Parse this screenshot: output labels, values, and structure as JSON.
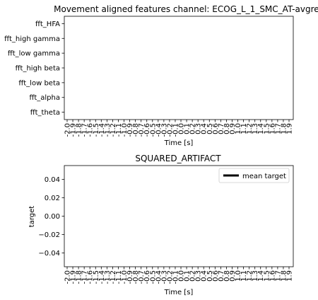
{
  "chart_data": [
    {
      "type": "heatmap",
      "title": "Movement aligned features channel: ECOG_L_1_SMC_AT-avgref",
      "xlabel": "Time [s]",
      "ylabel": "",
      "rows": [
        "fft_HFA",
        "fft_high gamma",
        "fft_low gamma",
        "fft_high beta",
        "fft_low beta",
        "fft_alpha",
        "fft_theta"
      ],
      "x_ticks": [
        "-2.0",
        "-1.9",
        "-1.8",
        "-1.7",
        "-1.6",
        "-1.5",
        "-1.4",
        "-1.3",
        "-1.2",
        "-1.1",
        "-1.0",
        "-0.9",
        "-0.8",
        "-0.7",
        "-0.6",
        "-0.5",
        "-0.4",
        "-0.3",
        "-0.2",
        "-0.1",
        "0.0",
        "0.1",
        "0.2",
        "0.3",
        "0.4",
        "0.5",
        "0.6",
        "0.7",
        "0.8",
        "0.9",
        "1.0",
        "1.1",
        "1.2",
        "1.3",
        "1.4",
        "1.5",
        "1.6",
        "1.7",
        "1.8",
        "1.9"
      ],
      "values": []
    },
    {
      "type": "line",
      "title": "SQUARED_ARTIFACT",
      "xlabel": "Time [s]",
      "ylabel": "target",
      "ylim": [
        -0.055,
        0.055
      ],
      "y_ticks": [
        "0.04",
        "0.02",
        "0.00",
        "−0.02",
        "−0.04"
      ],
      "y_tick_values": [
        0.04,
        0.02,
        0.0,
        -0.02,
        -0.04
      ],
      "x_ticks": [
        "-2.0",
        "-1.9",
        "-1.8",
        "-1.7",
        "-1.6",
        "-1.5",
        "-1.4",
        "-1.3",
        "-1.2",
        "-1.1",
        "-1.0",
        "-0.9",
        "-0.8",
        "-0.7",
        "-0.6",
        "-0.5",
        "-0.4",
        "-0.3",
        "-0.2",
        "-0.1",
        "0.0",
        "0.1",
        "0.2",
        "0.3",
        "0.4",
        "0.5",
        "0.6",
        "0.7",
        "0.8",
        "0.9",
        "1.0",
        "1.1",
        "1.2",
        "1.3",
        "1.4",
        "1.5",
        "1.6",
        "1.7",
        "1.8",
        "1.9"
      ],
      "legend": {
        "placement": "top-right",
        "entries": [
          "mean target"
        ]
      },
      "series": [
        {
          "name": "mean target",
          "color": "#000000",
          "values": []
        }
      ]
    }
  ]
}
